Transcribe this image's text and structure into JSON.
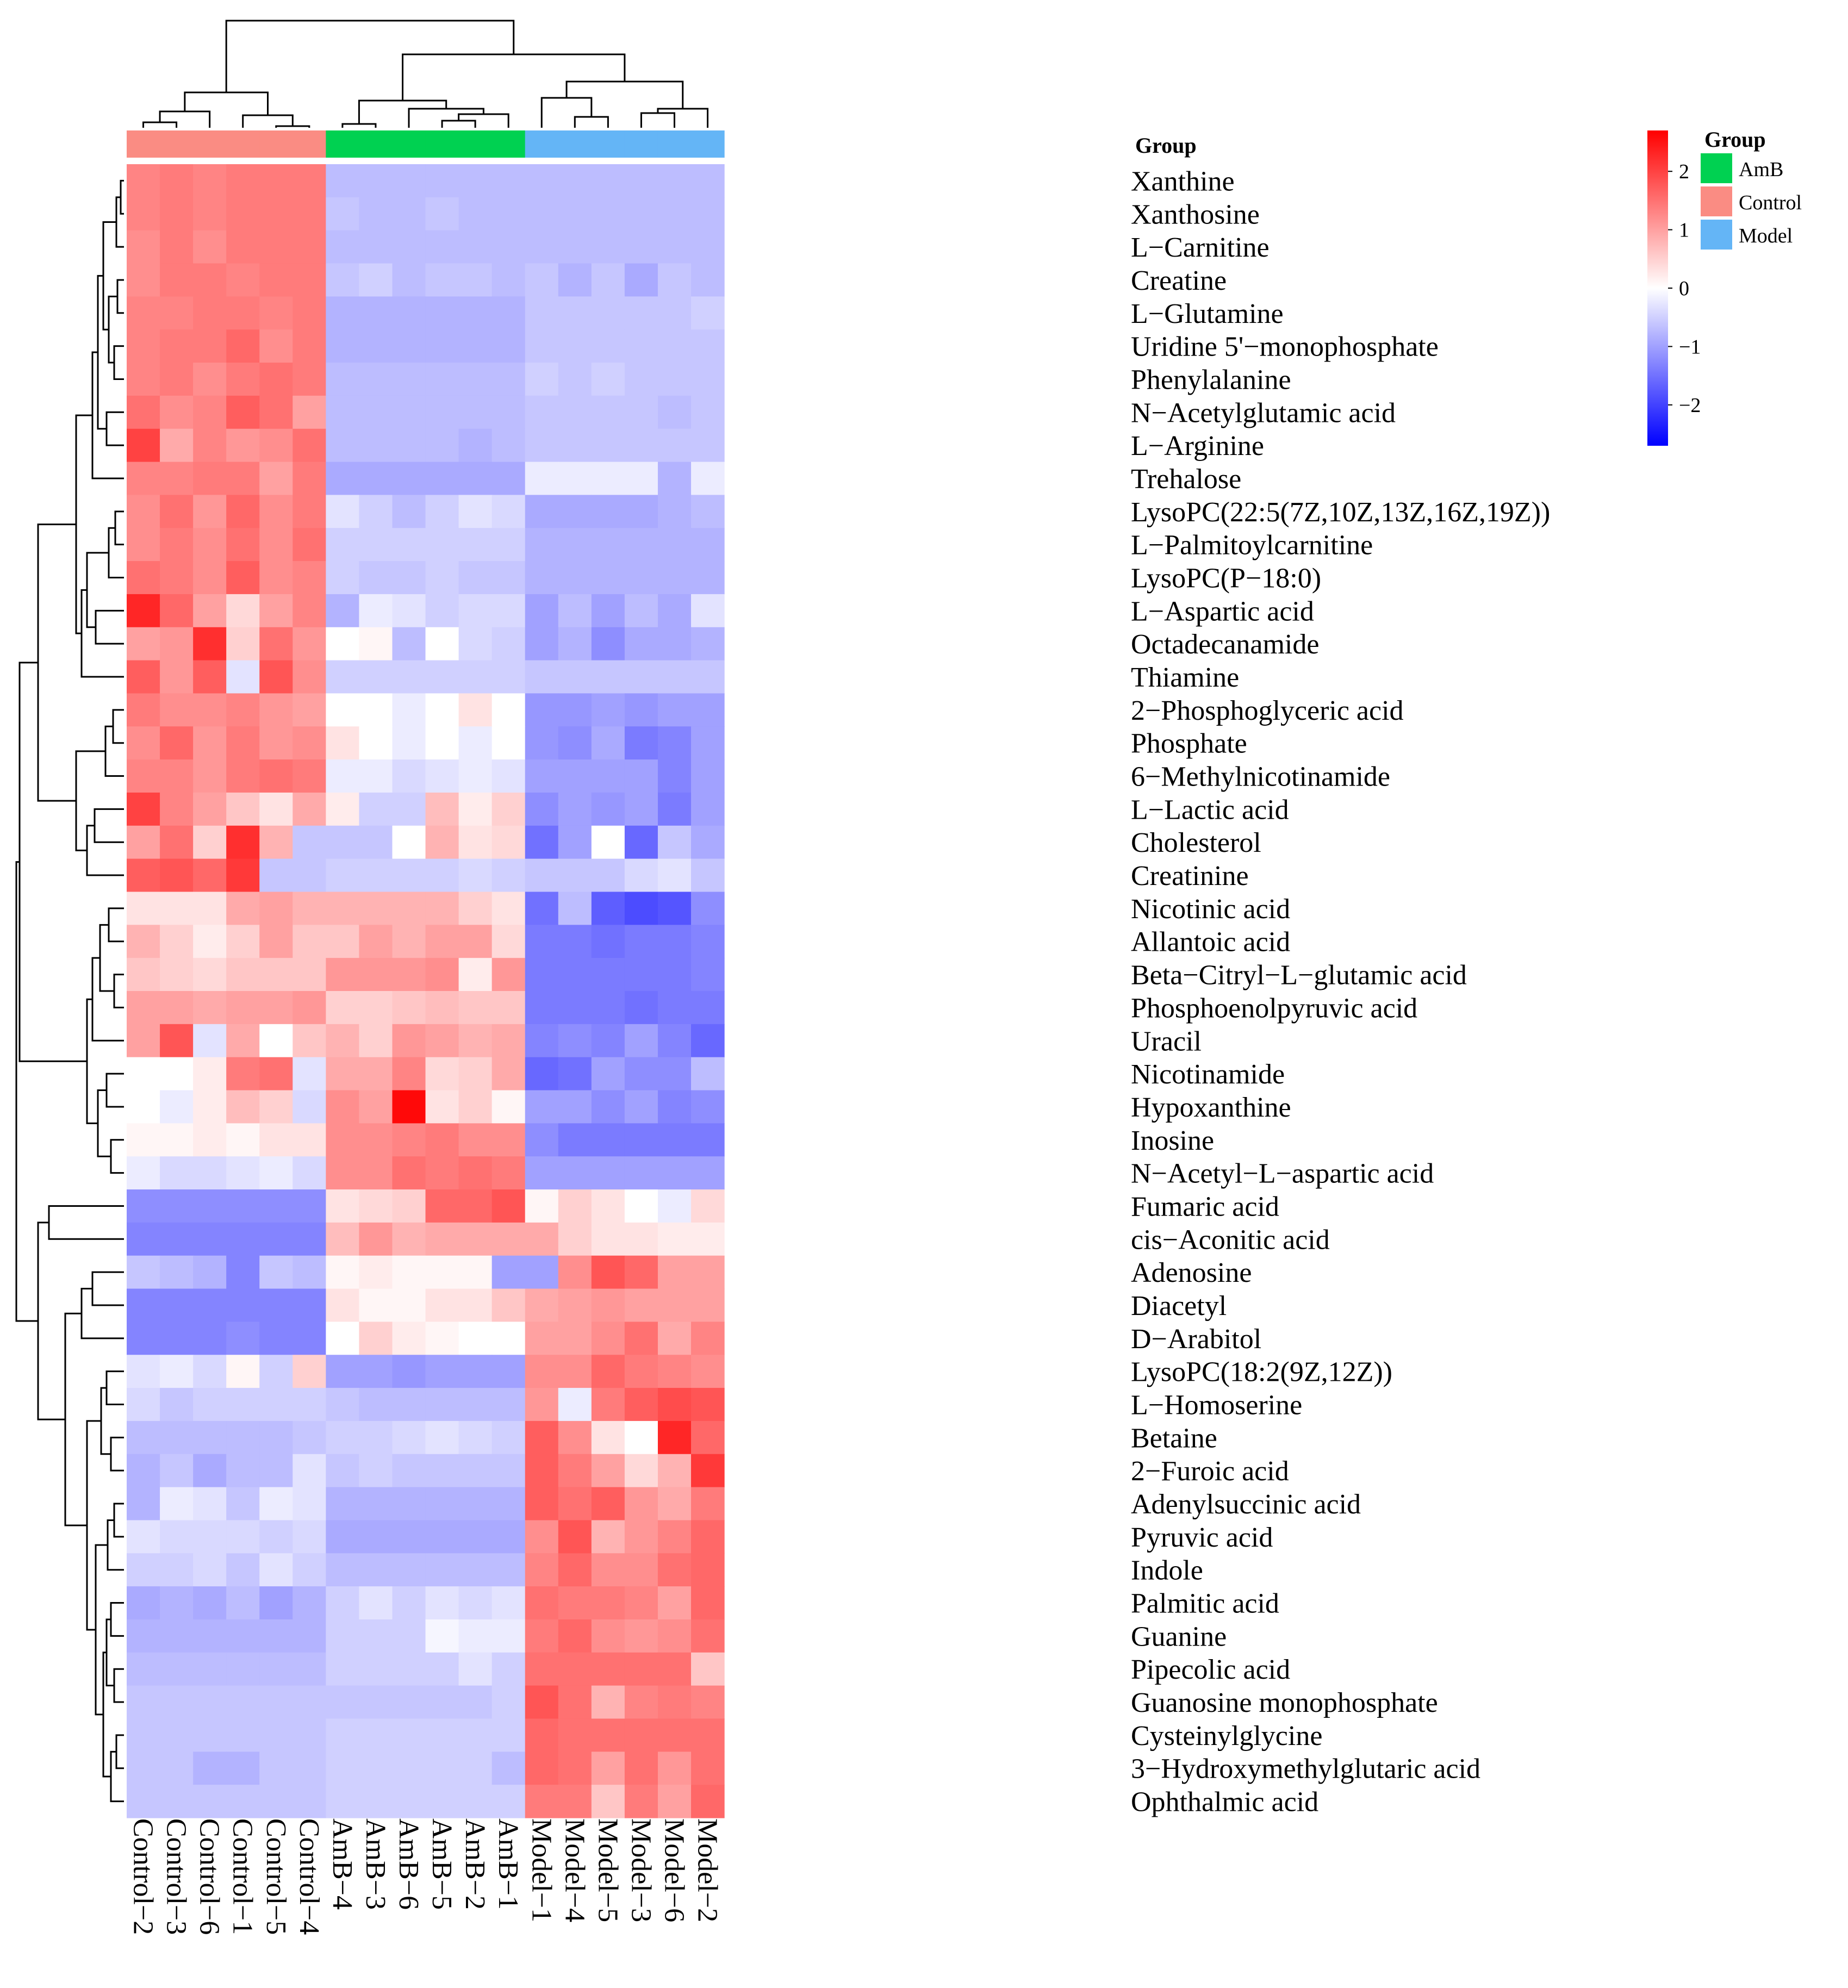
{
  "chart_data": {
    "type": "heatmap",
    "title": "",
    "columns": [
      "Control-2",
      "Control-3",
      "Control-6",
      "Control-1",
      "Control-5",
      "Control-4",
      "AmB-4",
      "AmB-3",
      "AmB-6",
      "AmB-5",
      "AmB-2",
      "AmB-1",
      "Model-1",
      "Model-4",
      "Model-5",
      "Model-3",
      "Model-6",
      "Model-2"
    ],
    "column_labels": [
      "Control−2",
      "Control−3",
      "Control−6",
      "Control−1",
      "Control−5",
      "Control−4",
      "AmB−4",
      "AmB−3",
      "AmB−6",
      "AmB−5",
      "AmB−2",
      "AmB−1",
      "Model−1",
      "Model−4",
      "Model−5",
      "Model−3",
      "Model−6",
      "Model−2"
    ],
    "column_groups": [
      "Control",
      "Control",
      "Control",
      "Control",
      "Control",
      "Control",
      "AmB",
      "AmB",
      "AmB",
      "AmB",
      "AmB",
      "AmB",
      "Model",
      "Model",
      "Model",
      "Model",
      "Model",
      "Model"
    ],
    "rows": [
      "Xanthine",
      "Xanthosine",
      "L−Carnitine",
      "Creatine",
      "L−Glutamine",
      "Uridine 5'−monophosphate",
      "Phenylalanine",
      "N−Acetylglutamic acid",
      "L−Arginine",
      "Trehalose",
      "LysoPC(22:5(7Z,10Z,13Z,16Z,19Z))",
      "L−Palmitoylcarnitine",
      "LysoPC(P−18:0)",
      "L−Aspartic acid",
      "Octadecanamide",
      "Thiamine",
      "2−Phosphoglyceric acid",
      "Phosphate",
      "6−Methylnicotinamide",
      "L−Lactic acid",
      "Cholesterol",
      "Creatinine",
      "Nicotinic acid",
      "Allantoic acid",
      "Beta−Citryl−L−glutamic acid",
      "Phosphoenolpyruvic acid",
      "Uracil",
      "Nicotinamide",
      "Hypoxanthine",
      "Inosine",
      "N−Acetyl−L−aspartic acid",
      "Fumaric acid",
      "cis−Aconitic acid",
      "Adenosine",
      "Diacetyl",
      "D−Arabitol",
      "LysoPC(18:2(9Z,12Z))",
      "L−Homoserine",
      "Betaine",
      "2−Furoic acid",
      "Adenylsuccinic acid",
      "Pyruvic acid",
      "Indole",
      "Palmitic acid",
      "Guanine",
      "Pipecolic acid",
      "Guanosine monophosphate",
      "Cysteinylglycine",
      "3−Hydroxymethylglutaric acid",
      "Ophthalmic acid"
    ],
    "values": [
      [
        1.3,
        1.4,
        1.3,
        1.4,
        1.4,
        1.4,
        -0.7,
        -0.7,
        -0.7,
        -0.7,
        -0.7,
        -0.7,
        -0.7,
        -0.7,
        -0.7,
        -0.7,
        -0.7,
        -0.7
      ],
      [
        1.3,
        1.4,
        1.3,
        1.4,
        1.4,
        1.4,
        -0.6,
        -0.7,
        -0.7,
        -0.6,
        -0.7,
        -0.7,
        -0.7,
        -0.7,
        -0.7,
        -0.7,
        -0.7,
        -0.7
      ],
      [
        1.2,
        1.4,
        1.2,
        1.4,
        1.4,
        1.4,
        -0.7,
        -0.7,
        -0.7,
        -0.7,
        -0.7,
        -0.7,
        -0.7,
        -0.7,
        -0.7,
        -0.7,
        -0.7,
        -0.7
      ],
      [
        1.2,
        1.4,
        1.4,
        1.3,
        1.4,
        1.4,
        -0.6,
        -0.5,
        -0.7,
        -0.6,
        -0.6,
        -0.7,
        -0.6,
        -0.8,
        -0.6,
        -0.9,
        -0.6,
        -0.7
      ],
      [
        1.3,
        1.3,
        1.4,
        1.4,
        1.3,
        1.4,
        -0.8,
        -0.8,
        -0.8,
        -0.8,
        -0.8,
        -0.8,
        -0.6,
        -0.6,
        -0.6,
        -0.6,
        -0.6,
        -0.5
      ],
      [
        1.3,
        1.4,
        1.4,
        1.6,
        1.2,
        1.4,
        -0.8,
        -0.8,
        -0.8,
        -0.8,
        -0.8,
        -0.8,
        -0.6,
        -0.6,
        -0.6,
        -0.6,
        -0.6,
        -0.6
      ],
      [
        1.3,
        1.4,
        1.2,
        1.4,
        1.5,
        1.4,
        -0.7,
        -0.7,
        -0.7,
        -0.7,
        -0.7,
        -0.7,
        -0.5,
        -0.6,
        -0.5,
        -0.6,
        -0.6,
        -0.6
      ],
      [
        1.5,
        1.2,
        1.3,
        1.7,
        1.5,
        1.0,
        -0.7,
        -0.7,
        -0.7,
        -0.7,
        -0.7,
        -0.7,
        -0.6,
        -0.6,
        -0.6,
        -0.6,
        -0.7,
        -0.6
      ],
      [
        2.0,
        0.9,
        1.3,
        1.1,
        1.2,
        1.5,
        -0.7,
        -0.7,
        -0.7,
        -0.7,
        -0.8,
        -0.7,
        -0.6,
        -0.6,
        -0.6,
        -0.6,
        -0.6,
        -0.6
      ],
      [
        1.3,
        1.3,
        1.4,
        1.4,
        1.0,
        1.4,
        -0.9,
        -0.9,
        -0.9,
        -0.9,
        -0.9,
        -0.9,
        -0.2,
        -0.2,
        -0.2,
        -0.2,
        -0.8,
        -0.2
      ],
      [
        1.2,
        1.5,
        1.1,
        1.6,
        1.2,
        1.4,
        -0.3,
        -0.5,
        -0.7,
        -0.5,
        -0.3,
        -0.4,
        -0.9,
        -0.9,
        -0.9,
        -0.9,
        -0.8,
        -0.7
      ],
      [
        1.2,
        1.4,
        1.2,
        1.5,
        1.2,
        1.5,
        -0.5,
        -0.5,
        -0.5,
        -0.5,
        -0.5,
        -0.5,
        -0.8,
        -0.8,
        -0.8,
        -0.8,
        -0.8,
        -0.8
      ],
      [
        1.5,
        1.4,
        1.2,
        1.7,
        1.2,
        1.3,
        -0.5,
        -0.6,
        -0.6,
        -0.5,
        -0.6,
        -0.6,
        -0.8,
        -0.8,
        -0.8,
        -0.8,
        -0.8,
        -0.8
      ],
      [
        2.3,
        1.6,
        1.0,
        0.4,
        1.0,
        1.3,
        -0.8,
        -0.2,
        -0.3,
        -0.5,
        -0.4,
        -0.4,
        -1.0,
        -0.7,
        -1.0,
        -0.7,
        -0.9,
        -0.3
      ],
      [
        1.0,
        1.1,
        2.2,
        0.5,
        1.5,
        1.1,
        0.0,
        0.1,
        -0.7,
        0.0,
        -0.4,
        -0.5,
        -1.0,
        -0.8,
        -1.2,
        -0.9,
        -0.9,
        -0.8
      ],
      [
        1.7,
        1.1,
        1.7,
        -0.3,
        1.8,
        1.2,
        -0.5,
        -0.5,
        -0.5,
        -0.5,
        -0.5,
        -0.5,
        -0.6,
        -0.6,
        -0.6,
        -0.6,
        -0.6,
        -0.6
      ],
      [
        1.4,
        1.2,
        1.2,
        1.3,
        1.1,
        1.0,
        0.0,
        0.0,
        -0.2,
        0.0,
        0.3,
        0.0,
        -1.1,
        -1.1,
        -1.0,
        -1.1,
        -1.0,
        -1.0
      ],
      [
        1.2,
        1.6,
        1.1,
        1.4,
        1.1,
        1.2,
        0.3,
        0.0,
        -0.2,
        0.0,
        -0.2,
        0.0,
        -1.1,
        -1.2,
        -0.9,
        -1.4,
        -1.3,
        -1.0
      ],
      [
        1.3,
        1.3,
        1.1,
        1.4,
        1.5,
        1.4,
        -0.2,
        -0.2,
        -0.4,
        -0.3,
        -0.2,
        -0.3,
        -1.0,
        -1.0,
        -1.0,
        -1.0,
        -1.3,
        -1.0
      ],
      [
        2.0,
        1.3,
        1.0,
        0.6,
        0.3,
        0.9,
        0.2,
        -0.5,
        -0.5,
        0.7,
        0.2,
        0.5,
        -1.2,
        -1.0,
        -1.1,
        -1.0,
        -1.4,
        -1.0
      ],
      [
        1.0,
        1.5,
        0.5,
        2.2,
        0.8,
        -0.6,
        -0.6,
        -0.6,
        0.0,
        0.8,
        0.3,
        0.4,
        -1.5,
        -1.0,
        0.0,
        -1.6,
        -0.6,
        -0.9
      ],
      [
        1.7,
        1.8,
        1.6,
        2.1,
        -0.6,
        -0.6,
        -0.5,
        -0.5,
        -0.5,
        -0.5,
        -0.4,
        -0.5,
        -0.6,
        -0.6,
        -0.6,
        -0.4,
        -0.3,
        -0.6
      ],
      [
        0.3,
        0.3,
        0.3,
        0.9,
        1.0,
        0.8,
        0.8,
        0.8,
        0.8,
        0.8,
        0.5,
        0.3,
        -1.5,
        -0.7,
        -1.7,
        -1.9,
        -1.8,
        -1.2
      ],
      [
        0.8,
        0.5,
        0.2,
        0.5,
        1.0,
        0.6,
        0.6,
        1.0,
        0.8,
        1.0,
        1.0,
        0.4,
        -1.4,
        -1.4,
        -1.5,
        -1.4,
        -1.4,
        -1.3
      ],
      [
        0.6,
        0.5,
        0.4,
        0.6,
        0.6,
        0.6,
        1.1,
        1.1,
        1.1,
        1.2,
        0.2,
        1.1,
        -1.4,
        -1.4,
        -1.4,
        -1.4,
        -1.4,
        -1.3
      ],
      [
        1.0,
        1.0,
        0.9,
        1.0,
        1.0,
        1.1,
        0.5,
        0.5,
        0.6,
        0.7,
        0.6,
        0.6,
        -1.4,
        -1.4,
        -1.4,
        -1.5,
        -1.4,
        -1.4
      ],
      [
        1.0,
        1.8,
        -0.3,
        0.9,
        0.0,
        0.6,
        0.8,
        0.5,
        1.1,
        1.0,
        0.8,
        0.9,
        -1.3,
        -1.2,
        -1.3,
        -1.0,
        -1.3,
        -1.6
      ],
      [
        0.0,
        0.0,
        0.2,
        1.4,
        1.5,
        -0.3,
        0.9,
        0.9,
        1.3,
        0.4,
        0.5,
        0.9,
        -1.6,
        -1.5,
        -1.0,
        -1.2,
        -1.2,
        -0.7
      ],
      [
        0.0,
        -0.2,
        0.2,
        0.7,
        0.5,
        -0.4,
        1.2,
        1.0,
        2.6,
        0.3,
        0.5,
        0.1,
        -1.0,
        -1.0,
        -1.2,
        -1.0,
        -1.3,
        -1.2
      ],
      [
        0.1,
        0.1,
        0.2,
        0.1,
        0.3,
        0.3,
        1.2,
        1.2,
        1.3,
        1.4,
        1.2,
        1.2,
        -1.2,
        -1.4,
        -1.4,
        -1.4,
        -1.4,
        -1.4
      ],
      [
        -0.2,
        -0.4,
        -0.4,
        -0.3,
        -0.2,
        -0.4,
        1.2,
        1.2,
        1.5,
        1.4,
        1.5,
        1.4,
        -1.0,
        -1.0,
        -1.0,
        -1.0,
        -1.0,
        -1.0
      ],
      [
        -1.2,
        -1.2,
        -1.2,
        -1.2,
        -1.2,
        -1.2,
        0.3,
        0.4,
        0.5,
        1.6,
        1.6,
        1.8,
        0.1,
        0.5,
        0.3,
        0.0,
        -0.2,
        0.4
      ],
      [
        -1.3,
        -1.3,
        -1.3,
        -1.3,
        -1.3,
        -1.3,
        0.7,
        1.1,
        0.8,
        0.9,
        0.9,
        0.9,
        0.9,
        0.5,
        0.3,
        0.3,
        0.2,
        0.2
      ],
      [
        -0.6,
        -0.7,
        -0.8,
        -1.3,
        -0.6,
        -0.7,
        0.1,
        0.2,
        0.1,
        0.1,
        0.1,
        -1.0,
        -1.0,
        1.2,
        1.8,
        1.6,
        1.0,
        1.0
      ],
      [
        -1.3,
        -1.3,
        -1.3,
        -1.3,
        -1.3,
        -1.3,
        0.3,
        0.1,
        0.1,
        0.3,
        0.3,
        0.6,
        0.9,
        1.0,
        1.1,
        1.0,
        1.0,
        1.0
      ],
      [
        -1.3,
        -1.3,
        -1.3,
        -1.2,
        -1.3,
        -1.3,
        0.0,
        0.5,
        0.2,
        0.1,
        0.0,
        0.0,
        1.0,
        1.0,
        1.2,
        1.5,
        0.9,
        1.3
      ],
      [
        -0.3,
        -0.2,
        -0.4,
        0.1,
        -0.5,
        0.5,
        -1.0,
        -1.0,
        -1.1,
        -1.0,
        -1.0,
        -1.0,
        1.2,
        1.2,
        1.6,
        1.4,
        1.3,
        1.2
      ],
      [
        -0.4,
        -0.6,
        -0.5,
        -0.5,
        -0.5,
        -0.5,
        -0.6,
        -0.7,
        -0.7,
        -0.7,
        -0.7,
        -0.7,
        1.1,
        -0.2,
        1.4,
        1.7,
        1.9,
        1.8
      ],
      [
        -0.7,
        -0.7,
        -0.7,
        -0.7,
        -0.7,
        -0.6,
        -0.5,
        -0.5,
        -0.4,
        -0.3,
        -0.4,
        -0.5,
        1.7,
        1.2,
        0.3,
        0.0,
        2.3,
        1.6
      ],
      [
        -0.8,
        -0.6,
        -0.9,
        -0.7,
        -0.7,
        -0.3,
        -0.6,
        -0.5,
        -0.6,
        -0.6,
        -0.6,
        -0.6,
        1.7,
        1.4,
        1.0,
        0.4,
        0.8,
        2.1
      ],
      [
        -0.8,
        -0.2,
        -0.3,
        -0.6,
        -0.2,
        -0.3,
        -0.8,
        -0.8,
        -0.8,
        -0.8,
        -0.8,
        -0.8,
        1.7,
        1.5,
        1.7,
        1.1,
        0.9,
        1.4
      ],
      [
        -0.3,
        -0.4,
        -0.4,
        -0.4,
        -0.5,
        -0.4,
        -0.9,
        -0.9,
        -0.9,
        -0.9,
        -0.9,
        -0.9,
        1.2,
        1.8,
        0.8,
        1.1,
        1.3,
        1.6
      ],
      [
        -0.5,
        -0.5,
        -0.4,
        -0.6,
        -0.3,
        -0.5,
        -0.7,
        -0.7,
        -0.7,
        -0.7,
        -0.7,
        -0.7,
        1.3,
        1.6,
        1.2,
        1.2,
        1.5,
        1.6
      ],
      [
        -0.9,
        -0.8,
        -0.9,
        -0.7,
        -1.0,
        -0.8,
        -0.5,
        -0.3,
        -0.5,
        -0.3,
        -0.4,
        -0.3,
        1.5,
        1.4,
        1.4,
        1.3,
        1.0,
        1.6
      ],
      [
        -0.8,
        -0.8,
        -0.8,
        -0.8,
        -0.8,
        -0.8,
        -0.5,
        -0.5,
        -0.5,
        -0.1,
        -0.2,
        -0.2,
        1.4,
        1.6,
        1.2,
        1.1,
        1.2,
        1.5
      ],
      [
        -0.7,
        -0.7,
        -0.7,
        -0.7,
        -0.7,
        -0.7,
        -0.5,
        -0.5,
        -0.5,
        -0.5,
        -0.3,
        -0.5,
        1.5,
        1.5,
        1.5,
        1.5,
        1.5,
        0.6
      ],
      [
        -0.6,
        -0.6,
        -0.6,
        -0.6,
        -0.6,
        -0.6,
        -0.6,
        -0.6,
        -0.6,
        -0.6,
        -0.6,
        -0.5,
        1.8,
        1.5,
        0.8,
        1.3,
        1.4,
        1.3
      ],
      [
        -0.6,
        -0.6,
        -0.6,
        -0.6,
        -0.6,
        -0.6,
        -0.5,
        -0.5,
        -0.5,
        -0.5,
        -0.5,
        -0.5,
        1.6,
        1.5,
        1.5,
        1.5,
        1.5,
        1.5
      ],
      [
        -0.6,
        -0.6,
        -0.8,
        -0.8,
        -0.6,
        -0.6,
        -0.5,
        -0.5,
        -0.5,
        -0.5,
        -0.5,
        -0.7,
        1.6,
        1.5,
        1.0,
        1.5,
        1.1,
        1.5
      ],
      [
        -0.6,
        -0.6,
        -0.6,
        -0.6,
        -0.6,
        -0.6,
        -0.5,
        -0.5,
        -0.5,
        -0.5,
        -0.5,
        -0.5,
        1.4,
        1.4,
        0.6,
        1.4,
        1.0,
        1.6
      ]
    ],
    "color_scale": {
      "range": [
        -2.7,
        2.7
      ],
      "low": "#0000ff",
      "mid": "#ffffff",
      "high": "#ff0000",
      "ticks": [
        2,
        1,
        0,
        -1,
        -2
      ],
      "tick_labels": [
        "2",
        "1",
        "0",
        "−1",
        "−2"
      ]
    },
    "annotation_title": "Group",
    "groups": [
      {
        "name": "AmB",
        "color": "#00d151"
      },
      {
        "name": "Control",
        "color": "#fa8c83"
      },
      {
        "name": "Model",
        "color": "#64b5f6"
      }
    ],
    "legend": {
      "title": "Group",
      "entries": [
        "AmB",
        "Control",
        "Model"
      ],
      "position": "top-right"
    },
    "column_dendrogram": true,
    "row_dendrogram": true
  }
}
